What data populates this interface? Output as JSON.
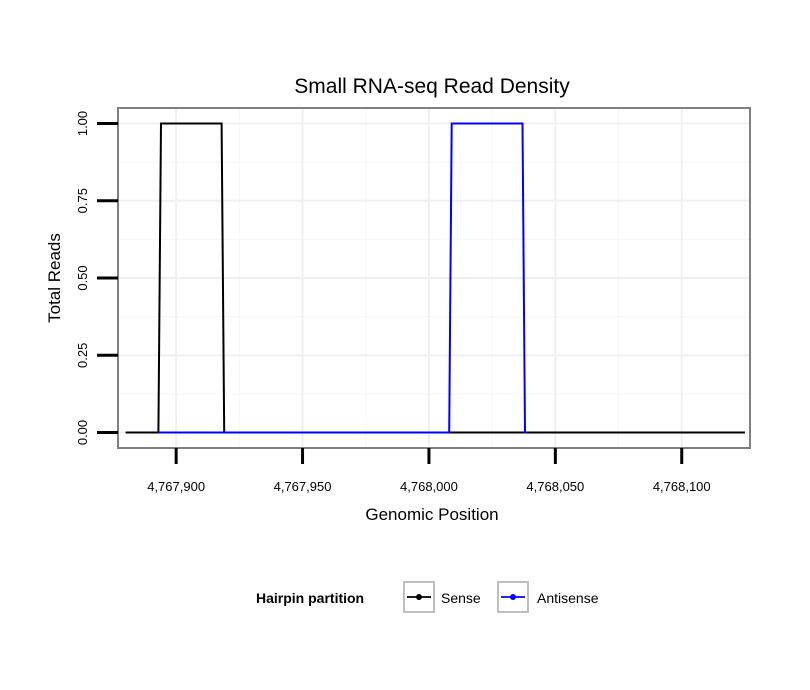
{
  "chart_data": {
    "type": "line",
    "title": "Small RNA-seq Read Density",
    "xlabel": "Genomic Position",
    "ylabel": "Total Reads",
    "xlim": [
      4767877,
      4768127
    ],
    "ylim": [
      -0.05,
      1.05
    ],
    "x_ticks": [
      4767900,
      4767950,
      4768000,
      4768050,
      4768100
    ],
    "x_tick_labels": [
      "4,767,900",
      "4,767,950",
      "4,768,000",
      "4,768,050",
      "4,768,100"
    ],
    "y_ticks": [
      0,
      0.25,
      0.5,
      0.75,
      1.0
    ],
    "y_tick_labels": [
      "0.00",
      "0.25",
      "0.50",
      "0.75",
      "1.00"
    ],
    "grid": true,
    "series": [
      {
        "name": "Sense",
        "color": "#000000",
        "x": [
          4767880,
          4767893,
          4767894,
          4767918,
          4767919,
          4768125
        ],
        "y": [
          0,
          0,
          1,
          1,
          0,
          0
        ]
      },
      {
        "name": "Antisense",
        "color": "#0000ff",
        "x": [
          4767893,
          4767919,
          4768008,
          4768009,
          4768037,
          4768038,
          4768039
        ],
        "y": [
          0,
          0,
          0,
          1,
          1,
          0,
          0
        ]
      }
    ],
    "legend": {
      "title": "Hairpin partition",
      "position": "bottom",
      "entries": [
        "Sense",
        "Antisense"
      ]
    }
  }
}
